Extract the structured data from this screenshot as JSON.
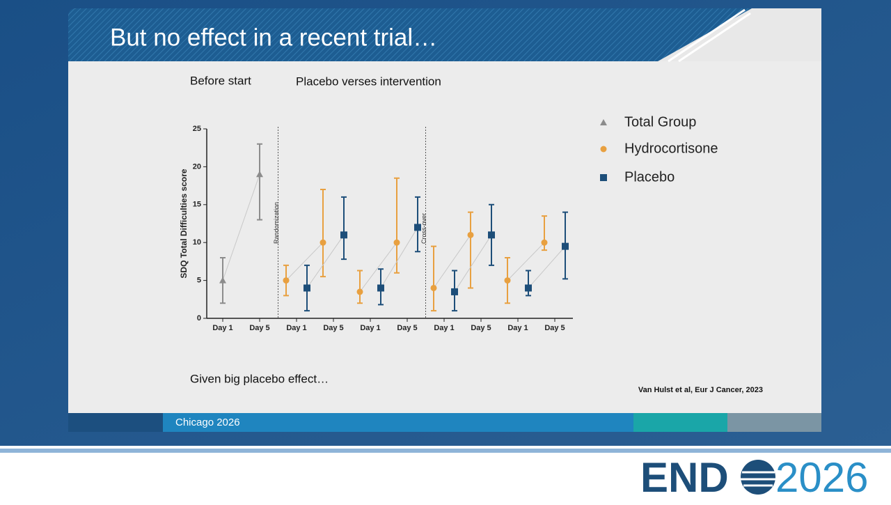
{
  "slide": {
    "title": "But no effect in a recent trial…",
    "before": "Before start",
    "intervention": "Placebo verses intervention",
    "note": "Given big placebo effect…",
    "citation": "Van Hulst  et al, Eur J Cancer, 2023",
    "footer": "Chicago 2026",
    "logo": "END",
    "logo_year": "2026"
  },
  "chart_data": {
    "type": "errorbar",
    "y_label": "SDQ Total  Difficulties score",
    "categories": [
      "Day 1",
      "Day 5",
      "Day 1",
      "Day 5",
      "Day 1",
      "Day 5",
      "Day 1",
      "Day 5",
      "Day 1",
      "Day 5"
    ],
    "annotations": [
      "Randomization",
      "Cross-over"
    ],
    "ylim": [
      0,
      25
    ],
    "yticks": [
      0,
      5,
      10,
      15,
      20,
      25
    ],
    "series": [
      {
        "name": "Total Group",
        "color": "#8c8c8c",
        "marker": "triangle",
        "values": [
          5,
          19,
          null,
          null,
          null,
          null,
          null,
          null,
          null,
          null
        ],
        "lower": [
          2,
          13,
          null,
          null,
          null,
          null,
          null,
          null,
          null,
          null
        ],
        "upper": [
          8,
          23,
          null,
          null,
          null,
          null,
          null,
          null,
          null,
          null
        ]
      },
      {
        "name": "Hydrocortisone",
        "color": "#e8a040",
        "marker": "circle",
        "values": [
          null,
          null,
          5,
          10,
          3.5,
          10,
          4,
          11,
          5,
          10
        ],
        "lower": [
          null,
          null,
          3,
          5.5,
          2,
          6,
          1,
          4,
          2,
          9
        ],
        "upper": [
          null,
          null,
          7,
          17,
          6.3,
          18.5,
          9.5,
          14,
          8,
          13.5
        ]
      },
      {
        "name": "Placebo",
        "color": "#1d4e79",
        "marker": "square",
        "values": [
          null,
          null,
          4,
          11,
          4,
          12,
          3.5,
          11,
          4,
          9.5
        ],
        "lower": [
          null,
          null,
          1,
          7.8,
          1.8,
          8.8,
          1,
          7,
          3,
          5.2
        ],
        "upper": [
          null,
          null,
          7,
          16,
          6.5,
          16,
          6.3,
          15,
          6.3,
          14
        ]
      }
    ]
  }
}
